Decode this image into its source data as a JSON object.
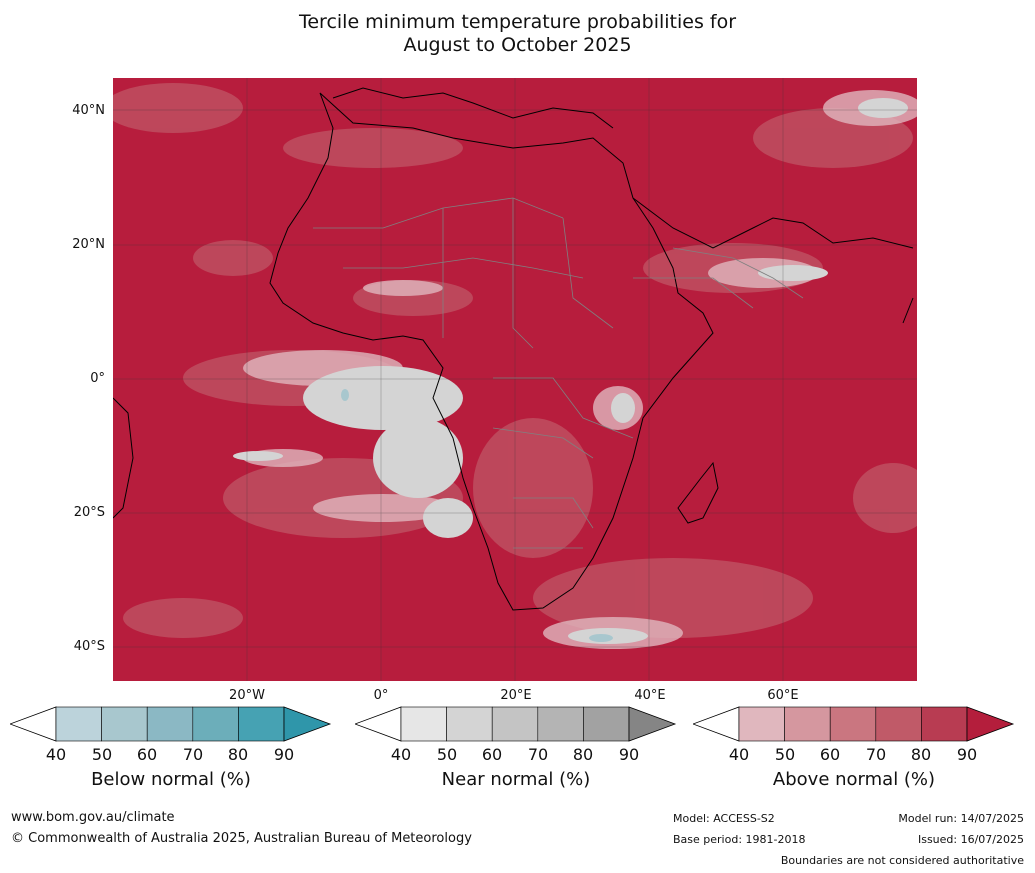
{
  "title": {
    "line1": "Tercile minimum temperature probabilities for",
    "line2": "August to October 2025"
  },
  "map": {
    "lat_labels": [
      "40°N",
      "20°N",
      "0°",
      "20°S",
      "40°S"
    ],
    "lon_labels": [
      "20°W",
      "0°",
      "20°E",
      "40°E",
      "60°E"
    ],
    "colors": {
      "ocean_land_dominant": "#b71d3d",
      "boundaries": "#808080",
      "coastline": "#000000"
    }
  },
  "legend": {
    "ticks": [
      "40",
      "50",
      "60",
      "70",
      "80",
      "90"
    ],
    "below": {
      "label": "Below normal (%)",
      "colors": [
        "#bcd3db",
        "#a8c7ce",
        "#8bb8c4",
        "#6caeba",
        "#46a2b3",
        "#2f96aa"
      ]
    },
    "near": {
      "label": "Near normal (%)",
      "colors": [
        "#e6e6e6",
        "#d4d4d4",
        "#c4c4c4",
        "#b4b4b4",
        "#a2a2a2",
        "#858585"
      ]
    },
    "above": {
      "label": "Above normal (%)",
      "colors": [
        "#e0b7be",
        "#d5979f",
        "#ca7680",
        "#c05a68",
        "#b83c52",
        "#b41e3c"
      ]
    }
  },
  "footer": {
    "website": "www.bom.gov.au/climate",
    "copyright": "© Commonwealth of Australia 2025, Australian Bureau of Meteorology",
    "model": "Model: ACCESS-S2",
    "base_period": "Base period: 1981-2018",
    "model_run": "Model run: 14/07/2025",
    "issued": "Issued: 16/07/2025",
    "disclaimer": "Boundaries are not considered authoritative"
  }
}
